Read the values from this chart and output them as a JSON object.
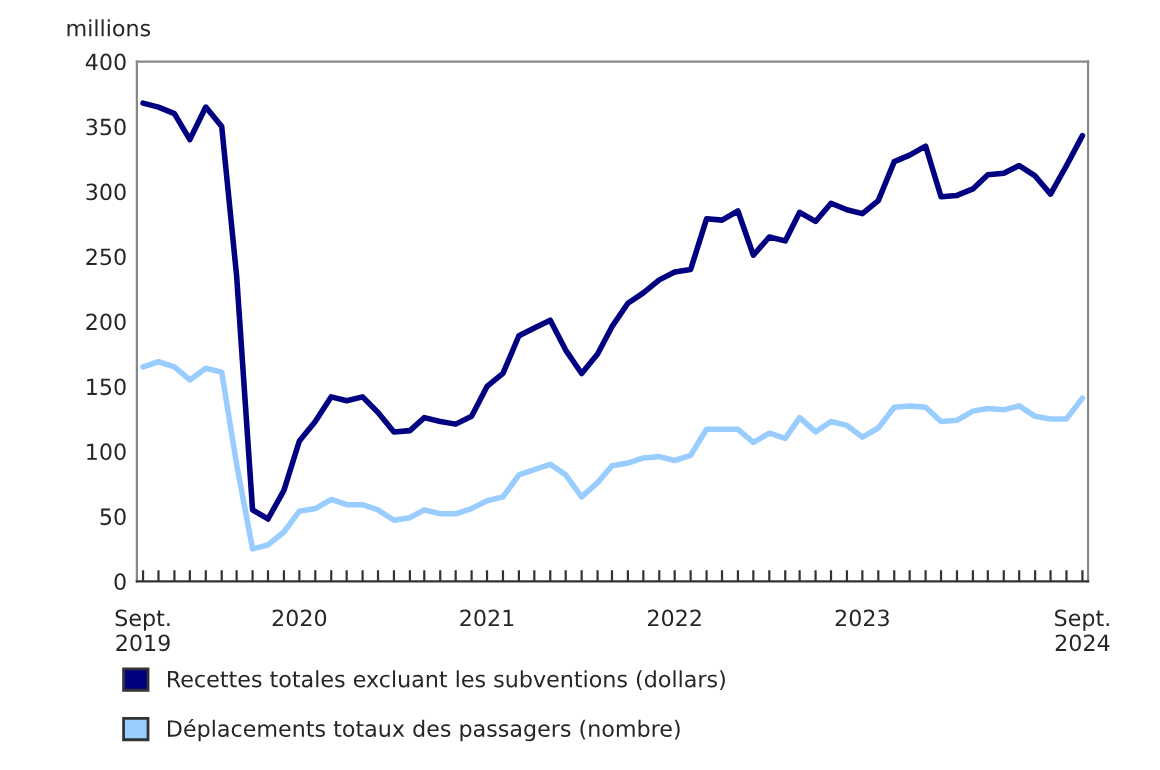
{
  "chart_data": {
    "type": "line",
    "ylabel": "millions",
    "x": [
      "2019-09",
      "2019-10",
      "2019-11",
      "2019-12",
      "2020-01",
      "2020-02",
      "2020-03",
      "2020-04",
      "2020-05",
      "2020-06",
      "2020-07",
      "2020-08",
      "2020-09",
      "2020-10",
      "2020-11",
      "2020-12",
      "2021-01",
      "2021-02",
      "2021-03",
      "2021-04",
      "2021-05",
      "2021-06",
      "2021-07",
      "2021-08",
      "2021-09",
      "2021-10",
      "2021-11",
      "2021-12",
      "2022-01",
      "2022-02",
      "2022-03",
      "2022-04",
      "2022-05",
      "2022-06",
      "2022-07",
      "2022-08",
      "2022-09",
      "2022-10",
      "2022-11",
      "2022-12",
      "2023-01",
      "2023-02",
      "2023-03",
      "2023-04",
      "2023-05",
      "2023-06",
      "2023-07",
      "2023-08",
      "2023-09",
      "2023-10",
      "2023-11",
      "2023-12",
      "2024-01",
      "2024-02",
      "2024-03",
      "2024-04",
      "2024-05",
      "2024-06",
      "2024-07",
      "2024-08",
      "2024-09"
    ],
    "series": [
      {
        "name": "Recettes totales excluant les subventions (dollars)",
        "color": "#000080",
        "values": [
          368,
          365,
          360,
          340,
          365,
          350,
          235,
          55,
          48,
          70,
          108,
          123,
          142,
          139,
          142,
          130,
          115,
          116,
          126,
          123,
          121,
          127,
          150,
          160,
          189,
          195,
          201,
          178,
          160,
          175,
          196,
          214,
          222,
          232,
          238,
          240,
          279,
          278,
          285,
          251,
          265,
          262,
          284,
          277,
          291,
          286,
          283,
          293,
          323,
          328,
          335,
          296,
          297,
          302,
          313,
          314,
          320,
          312,
          298,
          320,
          343
        ]
      },
      {
        "name": "Déplacements totaux des passagers (nombre)",
        "color": "#99ccff",
        "values": [
          165,
          169,
          165,
          155,
          164,
          161,
          90,
          25,
          28,
          38,
          54,
          56,
          63,
          59,
          59,
          55,
          47,
          49,
          55,
          52,
          52,
          56,
          62,
          65,
          82,
          86,
          90,
          82,
          65,
          76,
          89,
          91,
          95,
          96,
          93,
          97,
          117,
          117,
          117,
          107,
          114,
          110,
          126,
          115,
          123,
          120,
          111,
          118,
          134,
          135,
          134,
          123,
          124,
          131,
          133,
          132,
          135,
          127,
          125,
          125,
          141
        ]
      }
    ],
    "xlim": [
      "2019-08-20",
      "2024-09-12"
    ],
    "xticks": [
      {
        "value": "2019-09",
        "label": "Sept.\n2019"
      },
      {
        "value": "2020-01",
        "label": null
      },
      {
        "value": "2020-07",
        "label": "2020"
      },
      {
        "value": "2021-01",
        "label": null
      },
      {
        "value": "2021-07",
        "label": "2021"
      },
      {
        "value": "2022-01",
        "label": null
      },
      {
        "value": "2022-07",
        "label": "2022"
      },
      {
        "value": "2023-01",
        "label": null
      },
      {
        "value": "2023-07",
        "label": "2023"
      },
      {
        "value": "2024-01",
        "label": null
      },
      {
        "value": "2024-09",
        "label": "Sept.\n2024"
      }
    ],
    "ylim": [
      0,
      400
    ],
    "yticks": [
      0,
      50,
      100,
      150,
      200,
      250,
      300,
      350,
      400
    ],
    "grid": false,
    "legend": "bottom",
    "marker": "none",
    "line_style": "solid"
  }
}
